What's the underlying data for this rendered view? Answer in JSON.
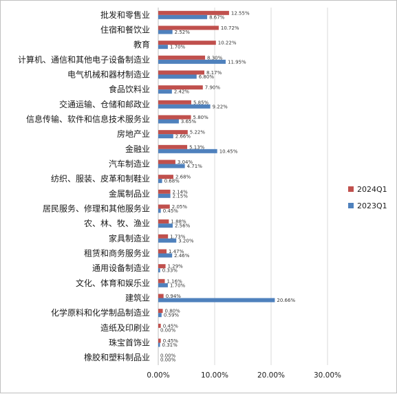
{
  "chart_data": {
    "type": "bar",
    "orientation": "horizontal",
    "categories": [
      "批发和零售业",
      "住宿和餐饮业",
      "教育",
      "计算机、通信和其他电子设备制造业",
      "电气机械和器材制造业",
      "食品饮料业",
      "交通运输、仓储和邮政业",
      "信息传输、软件和信息技术服务业",
      "房地产业",
      "金融业",
      "汽车制造业",
      "纺织、服装、皮革和制鞋业",
      "金属制品业",
      "居民服务、修理和其他服务业",
      "农、林、牧、渔业",
      "家具制造业",
      "租赁和商务服务业",
      "通用设备制造业",
      "文化、体育和娱乐业",
      "建筑业",
      "化学原料和化学制品制造业",
      "造纸及印刷业",
      "珠宝首饰业",
      "橡胶和塑料制品业"
    ],
    "series": [
      {
        "name": "2024Q1",
        "color": "#c0504d",
        "values": [
          12.55,
          10.72,
          10.22,
          8.3,
          8.17,
          7.9,
          5.85,
          5.8,
          5.22,
          5.13,
          3.04,
          2.68,
          2.14,
          2.05,
          1.88,
          1.73,
          1.47,
          1.29,
          1.16,
          0.94,
          0.8,
          0.45,
          0.45,
          0.0
        ],
        "labels": [
          "12.55%",
          "10.72%",
          "10.22%",
          "8.30%",
          "8.17%",
          "7.90%",
          "5.85%",
          "5.80%",
          "5.22%",
          "5.13%",
          "3.04%",
          "2.68%",
          "2.14%",
          "2.05%",
          "1.88%",
          "1.73%",
          "1.47%",
          "1.29%",
          "1.16%",
          "0.94%",
          "0.80%",
          "0.45%",
          "0.45%",
          "0.00%"
        ]
      },
      {
        "name": "2023Q1",
        "color": "#4f81bd",
        "values": [
          8.67,
          2.52,
          1.7,
          11.95,
          6.8,
          2.42,
          9.22,
          3.65,
          2.66,
          10.45,
          4.71,
          0.68,
          2.15,
          0.45,
          2.56,
          3.2,
          2.46,
          0.33,
          1.7,
          20.66,
          0.59,
          0.0,
          0.31,
          0.0
        ],
        "labels": [
          "8.67%",
          "2.52%",
          "1.70%",
          "11.95%",
          "6.80%",
          "2.42%",
          "9.22%",
          "3.65%",
          "2.66%",
          "10.45%",
          "4.71%",
          "0.68%",
          "2.15%",
          "0.45%",
          "2.56%",
          "3.20%",
          "2.46%",
          "0.33%",
          "1.70%",
          "20.66%",
          "0.59%",
          "0.00%",
          "0.31%",
          "0.00%"
        ]
      }
    ],
    "x_ticks": [
      0,
      10,
      20,
      30
    ],
    "x_tick_labels": [
      "0.00%",
      "10.00%",
      "20.00%",
      "30.00%"
    ],
    "xlim": [
      0,
      30
    ],
    "grid": true,
    "legend": {
      "position": "right",
      "entries": [
        "2024Q1",
        "2023Q1"
      ]
    }
  }
}
